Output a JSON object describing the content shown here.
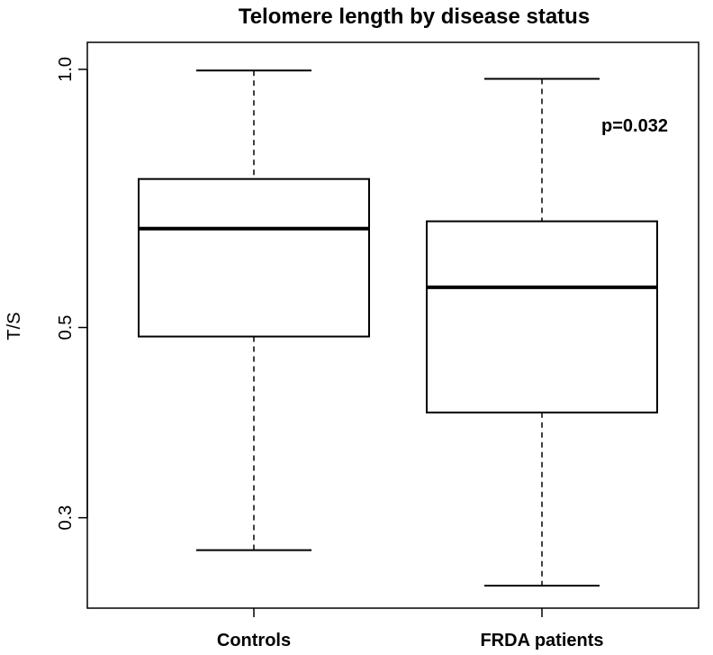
{
  "chart_data": {
    "type": "box",
    "title": "Telomere length by disease status",
    "xlabel": "",
    "ylabel": "T/S",
    "y_scale": "log",
    "ylim": [
      0.24,
      1.0
    ],
    "y_ticks": [
      {
        "value": 0.3,
        "label": "0.3"
      },
      {
        "value": 0.5,
        "label": "0.5"
      },
      {
        "value": 1.0,
        "label": "1.0"
      }
    ],
    "categories": [
      "Controls",
      "FRDA patients"
    ],
    "boxes": [
      {
        "category": "Controls",
        "whisker_low": 0.275,
        "q1": 0.488,
        "median": 0.652,
        "q3": 0.745,
        "whisker_high": 0.997
      },
      {
        "category": "FRDA patients",
        "whisker_low": 0.25,
        "q1": 0.398,
        "median": 0.557,
        "q3": 0.665,
        "whisker_high": 0.975
      }
    ],
    "annotation": "p=0.032",
    "grid": false,
    "legend": "none"
  }
}
